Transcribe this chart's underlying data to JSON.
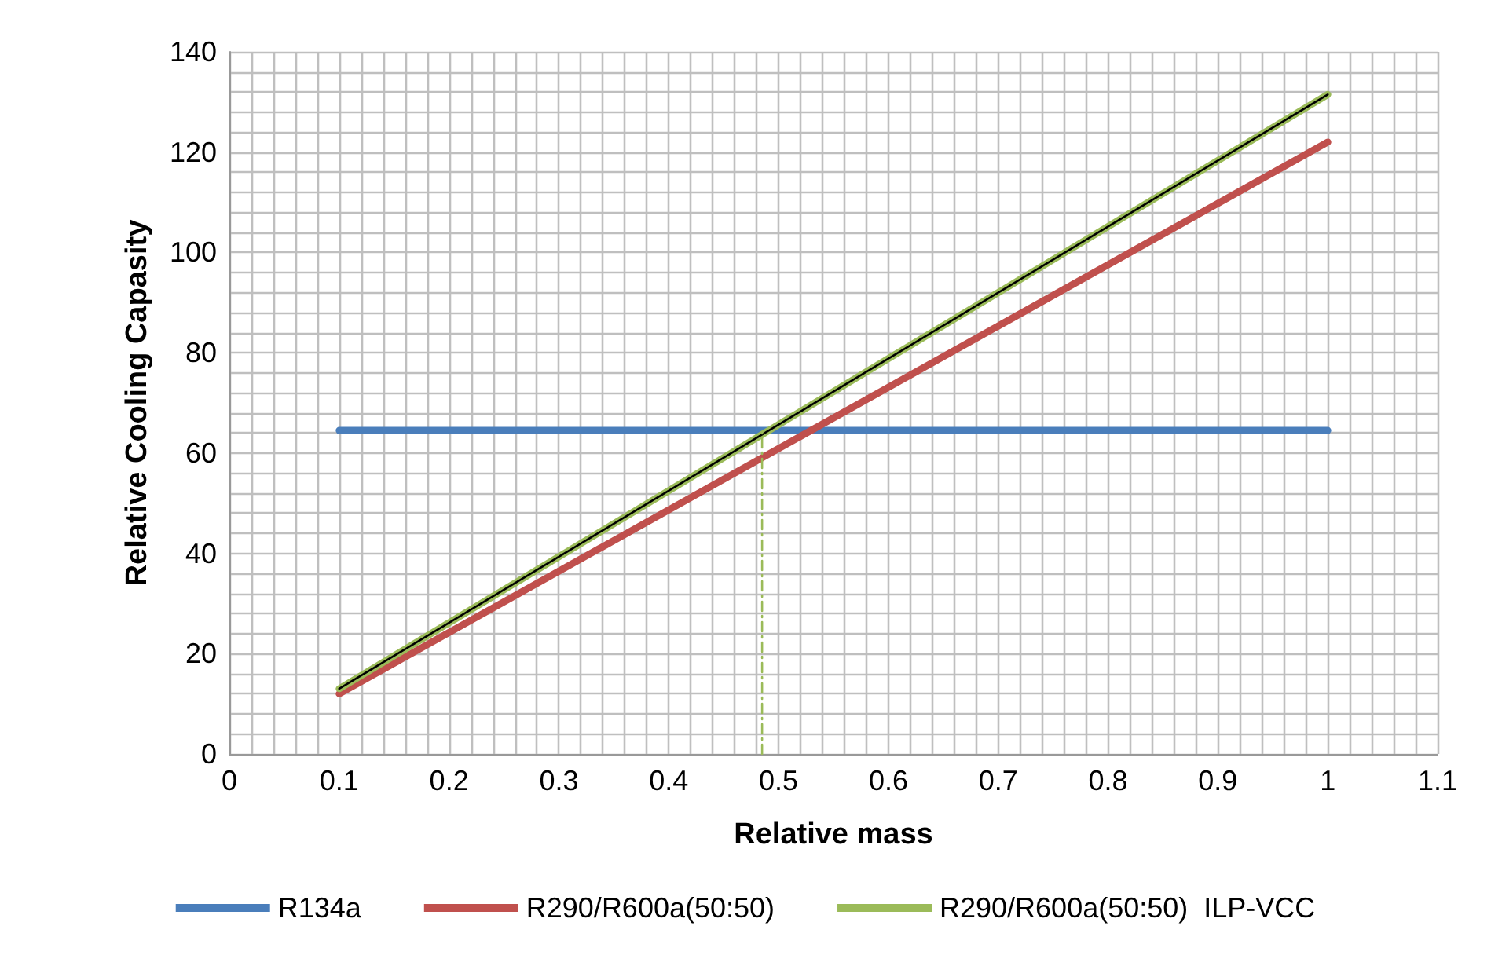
{
  "chart_data": {
    "type": "line",
    "xlabel": "Relative mass",
    "ylabel": "Relative Cooling Capasity",
    "xlim": [
      0,
      1.1
    ],
    "xticks": [
      0,
      0.1,
      0.2,
      0.3,
      0.4,
      0.5,
      0.6,
      0.7,
      0.8,
      0.9,
      1,
      1.1
    ],
    "ylim": [
      0,
      140
    ],
    "yticks": [
      0,
      20,
      40,
      60,
      80,
      100,
      120,
      140
    ],
    "grid": true,
    "legend": "bottom",
    "marker": "none",
    "line_style": "solid",
    "series": [
      {
        "name": "R134a",
        "color": "#4a7ebb",
        "x": [
          0.1,
          1
        ],
        "values": [
          64.5,
          64.5
        ]
      },
      {
        "name": "R290/R600a(50:50)",
        "color": "#c0504d",
        "x": [
          0.1,
          1
        ],
        "values": [
          12,
          122
        ]
      },
      {
        "name": "R290/R600a(50:50)  ILP-VCC",
        "color": "#9bbb59",
        "x": [
          0.1,
          1
        ],
        "values": [
          13,
          131.5
        ]
      },
      {
        "color": "#000000",
        "x": [
          0.1,
          1
        ],
        "values": [
          13,
          131.5
        ]
      },
      {
        "color": "#9bbb59",
        "x": [
          0.485,
          0.485
        ],
        "values": [
          0,
          64.5
        ],
        "line_style": "dashed"
      }
    ]
  }
}
